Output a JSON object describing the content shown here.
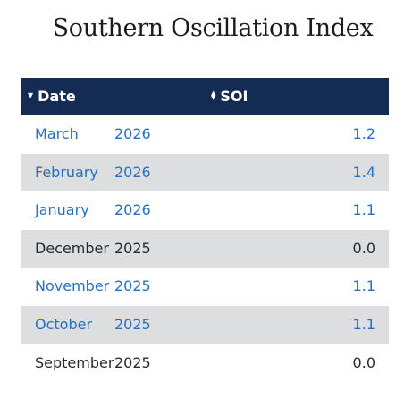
{
  "title": "Southern Oscillation Index",
  "table": {
    "headers": {
      "date": "Date",
      "soi": "SOI"
    },
    "rows": [
      {
        "month": "March",
        "year": "2026",
        "soi": "1.2",
        "linked": true
      },
      {
        "month": "February",
        "year": "2026",
        "soi": "1.4",
        "linked": true
      },
      {
        "month": "January",
        "year": "2026",
        "soi": "1.1",
        "linked": true
      },
      {
        "month": "December",
        "year": "2025",
        "soi": "0.0",
        "linked": false
      },
      {
        "month": "November",
        "year": "2025",
        "soi": "1.1",
        "linked": true
      },
      {
        "month": "October",
        "year": "2025",
        "soi": "1.1",
        "linked": true
      },
      {
        "month": "September",
        "year": "2025",
        "soi": "0.0",
        "linked": false
      }
    ]
  },
  "colors": {
    "header_bg": "#142c54",
    "link": "#2770c0",
    "row_shade": "#dcdedf"
  }
}
